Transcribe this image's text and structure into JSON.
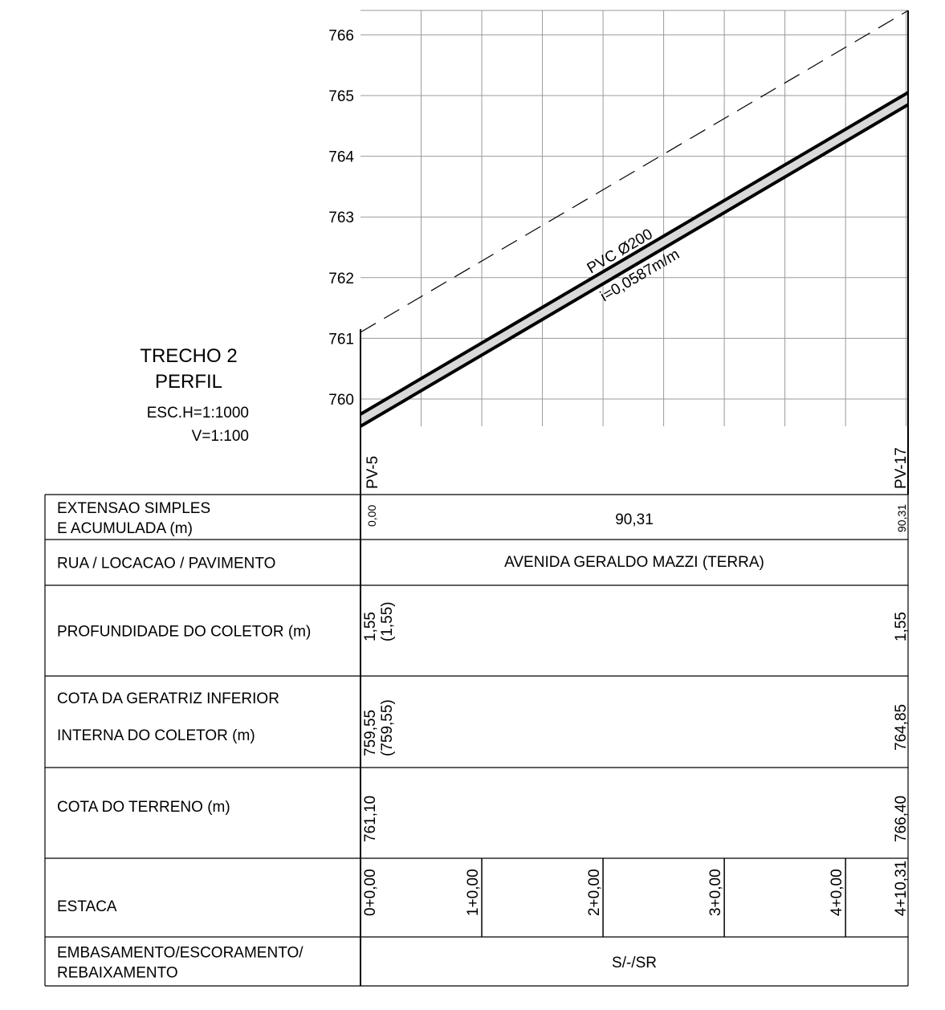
{
  "title": {
    "line1": "TRECHO 2",
    "line2": "PERFIL",
    "scale_h": "ESC.H=1:1000",
    "scale_v": "V=1:100"
  },
  "profile": {
    "y_ticks": [
      "760",
      "761",
      "762",
      "763",
      "764",
      "765",
      "766"
    ],
    "y_min": 759.55,
    "y_max": 766.4,
    "x_length_m": 90.31,
    "grid_step_m": 10,
    "terrain": {
      "start": 761.1,
      "end": 766.4
    },
    "pipe_invert": {
      "start": 759.55,
      "end": 764.85
    },
    "pipe_label": "PVC Ø200",
    "slope_label": "i=0,0587m/m",
    "pv_start": "PV-5",
    "pv_end": "PV-17"
  },
  "table": {
    "rows": [
      {
        "label1": "EXTENSAO SIMPLES",
        "label2": "E ACUMULADA (m)"
      },
      {
        "label1": "RUA / LOCACAO / PAVIMENTO"
      },
      {
        "label1": "PROFUNDIDADE DO COLETOR (m)"
      },
      {
        "label1": "COTA DA GERATRIZ INFERIOR",
        "label2": "INTERNA DO COLETOR (m)"
      },
      {
        "label1": "COTA DO TERRENO (m)"
      },
      {
        "label1": "ESTACA"
      },
      {
        "label1": "EMBASAMENTO/ESCORAMENTO/",
        "label2": "REBAIXAMENTO"
      }
    ],
    "extensao": {
      "start": "0,00",
      "middle": "90,31",
      "end": "90,31"
    },
    "rua": "AVENIDA GERALDO MAZZI (TERRA)",
    "profundidade": {
      "start_a": "1,55",
      "start_b": "(1,55)",
      "end": "1,55"
    },
    "cota_geratriz": {
      "start_a": "759,55",
      "start_b": "(759,55)",
      "end": "764,85"
    },
    "cota_terreno": {
      "start": "761,10",
      "end": "766,40"
    },
    "estaca": [
      "0+0,00",
      "1+0,00",
      "2+0,00",
      "3+0,00",
      "4+0,00",
      "4+10,31"
    ],
    "embasamento": "S/-/SR"
  },
  "colors": {
    "line": "#000000",
    "grid": "#9a9a9a",
    "pipe_fill": "#d9d9d9"
  }
}
